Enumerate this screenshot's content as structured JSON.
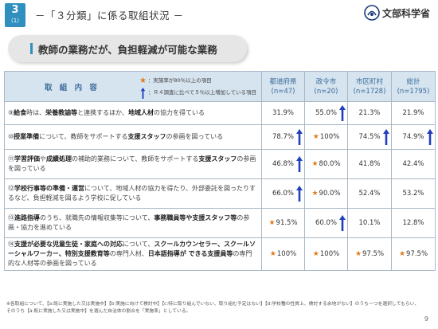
{
  "section": {
    "number": "3",
    "sub": "（1）"
  },
  "page_title": "－「３分類」に係る取組状況 －",
  "logo_text": "文部科学省",
  "slide_title": "教師の業務だが、負担軽減が可能な業務",
  "table": {
    "item_header": "取 組 内 容",
    "legend": {
      "star_text": "：実施率が80％以上の項目",
      "arrow_text": "：Ｒ４調査に比べて５％以上増加している項目"
    },
    "columns": [
      {
        "name": "都道府県",
        "n": "(n=47)"
      },
      {
        "name": "政令市",
        "n": "(n=20)"
      },
      {
        "name": "市区町村",
        "n": "(n=1728)"
      },
      {
        "name": "総計",
        "n": "(n=1795)"
      }
    ],
    "rows": [
      {
        "desc_html": "⑨<b>給食</b>時は、<b>栄養教諭等</b>と連携するほか、<b>地域人材</b>の協力を得ている",
        "cells": [
          {
            "value": "31.9%",
            "star": false,
            "up": false
          },
          {
            "value": "55.0%",
            "star": false,
            "up": true
          },
          {
            "value": "21.3%",
            "star": false,
            "up": false
          },
          {
            "value": "21.9%",
            "star": false,
            "up": false
          }
        ]
      },
      {
        "desc_html": "⑩<b>授業準備</b>について、教師をサポートする<b>支援スタッフ</b>の参画を図っている",
        "cells": [
          {
            "value": "78.7%",
            "star": false,
            "up": true
          },
          {
            "value": "100%",
            "star": true,
            "up": false
          },
          {
            "value": "74.5%",
            "star": false,
            "up": true
          },
          {
            "value": "74.9%",
            "star": false,
            "up": true
          }
        ]
      },
      {
        "desc_html": "⑪<b>学習評価</b>や<b>成績処理</b>の補助的業務について、教師をサポートする<b>支援スタッフ</b>の参画を図っている",
        "cells": [
          {
            "value": "46.8%",
            "star": false,
            "up": true
          },
          {
            "value": "80.0%",
            "star": true,
            "up": false
          },
          {
            "value": "41.8%",
            "star": false,
            "up": false
          },
          {
            "value": "42.4%",
            "star": false,
            "up": false
          }
        ]
      },
      {
        "desc_html": "⑫<b>学校行事等の準備・運営</b>について、地域人材の協力を得たり、外部委託を図ったりするなど、負担軽減を図るよう学校に促している",
        "cells": [
          {
            "value": "66.0%",
            "star": false,
            "up": true
          },
          {
            "value": "90.0%",
            "star": true,
            "up": false
          },
          {
            "value": "52.4%",
            "star": false,
            "up": false
          },
          {
            "value": "53.2%",
            "star": false,
            "up": false
          }
        ]
      },
      {
        "desc_html": "⑬<b>進路指導</b>のうち、就職先の情報収集等について、<b>事務職員等や支援スタッフ等</b>の参画・協力を進めている",
        "cells": [
          {
            "value": "91.5%",
            "star": true,
            "up": false
          },
          {
            "value": "60.0%",
            "star": false,
            "up": true
          },
          {
            "value": "10.1%",
            "star": false,
            "up": false
          },
          {
            "value": "12.8%",
            "star": false,
            "up": false
          }
        ]
      },
      {
        "desc_html": "⑭<b>支援が必要な児童生徒・家庭への対応</b>について、<b>スクールカウンセラー、スクールソーシャルワーカー、特別支援教育等</b>の専門人材、<b>日本語指導が できる支援員等</b>の専門的な人材等の参画を図っている",
        "cells": [
          {
            "value": "100%",
            "star": true,
            "up": false
          },
          {
            "value": "100%",
            "star": true,
            "up": false
          },
          {
            "value": "97.5%",
            "star": true,
            "up": false
          },
          {
            "value": "97.5%",
            "star": true,
            "up": false
          }
        ]
      }
    ]
  },
  "footnote": "※各取組について、【a:既に実施した又は実施中】【b:実施に向けて検討中】【c:特に取り組んでいない、取り組む予定はない】【d:学校種の性質上、検討する余地がない】のうち一つを選択してもらい、そのうち【a:既に実施した又は実施中】を選んだ自治体の割合を「実施率」としている。",
  "page_number": "9",
  "colors": {
    "accent": "#2f8fbf",
    "header_bg": "#d6e4f0",
    "star": "#e07b1a",
    "arrow": "#1f3fbf"
  }
}
